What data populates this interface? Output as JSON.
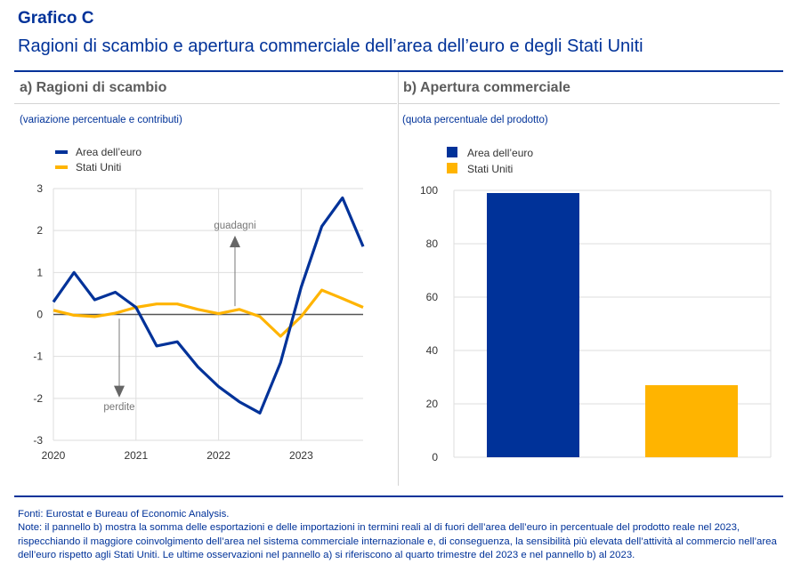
{
  "header": {
    "title": "Grafico C",
    "subtitle": "Ragioni di scambio e apertura commerciale dell’area dell’euro e degli Stati Uniti"
  },
  "panels": {
    "a": {
      "title": "a) Ragioni di scambio",
      "unit": "(variazione percentuale e contributi)"
    },
    "b": {
      "title": "b) Apertura commerciale",
      "unit": "(quota percentuale del prodotto)"
    }
  },
  "colors": {
    "euro": "#003299",
    "us": "#FFB400",
    "grid": "#dedede",
    "axis": "#555555",
    "annotation": "#777777"
  },
  "chart_data": [
    {
      "type": "line",
      "title": "a) Ragioni di scambio",
      "ylabel": "(variazione percentuale e contributi)",
      "xlabel": "",
      "ylim": [
        -3,
        3
      ],
      "yticks": [
        "3",
        "2",
        "1",
        "0",
        "-1",
        "-2",
        "-3"
      ],
      "ytick_values": [
        3,
        2,
        1,
        0,
        -1,
        -2,
        -3
      ],
      "xticks": [
        "2020",
        "2021",
        "2022",
        "2023"
      ],
      "x": [
        "2020Q1",
        "2020Q2",
        "2020Q3",
        "2020Q4",
        "2021Q1",
        "2021Q2",
        "2021Q3",
        "2021Q4",
        "2022Q1",
        "2022Q2",
        "2022Q3",
        "2022Q4",
        "2023Q1",
        "2023Q2",
        "2023Q3",
        "2023Q4"
      ],
      "grid": true,
      "legend": "top-left",
      "series": [
        {
          "name": "Area dell’euro",
          "color": "#003299",
          "values": [
            0.3,
            1.0,
            0.35,
            0.53,
            0.17,
            -0.75,
            -0.65,
            -1.25,
            -1.72,
            -2.08,
            -2.35,
            -1.15,
            0.65,
            2.1,
            2.78,
            1.62
          ]
        },
        {
          "name": "Stati Uniti",
          "color": "#FFB400",
          "values": [
            0.1,
            -0.02,
            -0.05,
            0.03,
            0.17,
            0.25,
            0.25,
            0.12,
            0.02,
            0.12,
            -0.05,
            -0.52,
            -0.05,
            0.58,
            0.38,
            0.17
          ]
        }
      ],
      "annotations": [
        {
          "text": "guadagni",
          "direction": "up"
        },
        {
          "text": "perdite",
          "direction": "down"
        }
      ]
    },
    {
      "type": "bar",
      "title": "b) Apertura commerciale",
      "ylabel": "(quota percentuale del prodotto)",
      "xlabel": "",
      "ylim": [
        0,
        100
      ],
      "yticks": [
        "100",
        "80",
        "60",
        "40",
        "20",
        "0"
      ],
      "ytick_values": [
        100,
        80,
        60,
        40,
        20,
        0
      ],
      "categories": [
        "Area dell’euro",
        "Stati Uniti"
      ],
      "values": [
        99,
        27
      ],
      "colors": [
        "#003299",
        "#FFB400"
      ],
      "grid": true,
      "legend": "top-left"
    }
  ],
  "footer": {
    "sources": "Fonti: Eurostat e Bureau of Economic Analysis.",
    "note": "Note: il pannello b) mostra la somma delle esportazioni e delle importazioni in termini reali al di fuori dell’area dell’euro in percentuale del prodotto reale nel 2023, rispecchiando il maggiore coinvolgimento dell’area nel sistema commerciale internazionale e, di conseguenza, la sensibilità più elevata dell’attività al commercio nell’area dell’euro rispetto agli Stati Uniti. Le ultime osservazioni nel pannello a) si riferiscono al quarto trimestre del 2023 e nel pannello b) al 2023."
  }
}
